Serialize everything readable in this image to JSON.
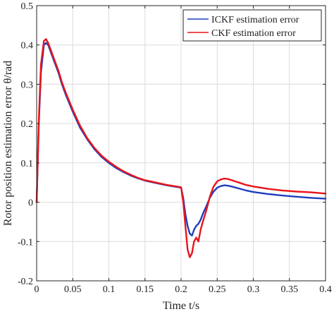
{
  "chart_data": {
    "type": "line",
    "title": "",
    "xlabel": "Time t/s",
    "ylabel": "Rotor position estimation error θ/rad",
    "xlim": [
      0,
      0.4
    ],
    "ylim": [
      -0.2,
      0.5
    ],
    "xticks": [
      0,
      0.05,
      0.1,
      0.15,
      0.2,
      0.25,
      0.3,
      0.35,
      0.4
    ],
    "xtick_labels": [
      "0",
      "0.05",
      "0.1",
      "0.15",
      "0.2",
      "0.25",
      "0.3",
      "0.35",
      "0.4"
    ],
    "yticks": [
      -0.2,
      -0.1,
      0,
      0.1,
      0.2,
      0.3,
      0.4,
      0.5
    ],
    "ytick_labels": [
      "-0.2",
      "-0.1",
      "0",
      "0.1",
      "0.2",
      "0.3",
      "0.4",
      "0.5"
    ],
    "grid": true,
    "legend_position": "top-right",
    "series": [
      {
        "name": "ICKF estimation error",
        "color": "#1f3fbf",
        "x": [
          0,
          0.003,
          0.006,
          0.01,
          0.013,
          0.016,
          0.02,
          0.025,
          0.03,
          0.035,
          0.04,
          0.05,
          0.06,
          0.07,
          0.08,
          0.09,
          0.1,
          0.11,
          0.12,
          0.13,
          0.14,
          0.15,
          0.16,
          0.17,
          0.18,
          0.19,
          0.2,
          0.203,
          0.206,
          0.209,
          0.212,
          0.215,
          0.218,
          0.221,
          0.224,
          0.227,
          0.23,
          0.235,
          0.24,
          0.245,
          0.25,
          0.255,
          0.26,
          0.265,
          0.27,
          0.28,
          0.29,
          0.3,
          0.32,
          0.34,
          0.36,
          0.38,
          0.4
        ],
        "y": [
          0,
          0.2,
          0.33,
          0.4,
          0.405,
          0.4,
          0.38,
          0.355,
          0.33,
          0.3,
          0.275,
          0.23,
          0.19,
          0.16,
          0.135,
          0.115,
          0.1,
          0.087,
          0.077,
          0.068,
          0.061,
          0.055,
          0.051,
          0.047,
          0.043,
          0.04,
          0.037,
          0.01,
          -0.03,
          -0.06,
          -0.08,
          -0.085,
          -0.07,
          -0.06,
          -0.055,
          -0.045,
          -0.03,
          -0.01,
          0.012,
          0.027,
          0.037,
          0.041,
          0.043,
          0.042,
          0.04,
          0.035,
          0.03,
          0.026,
          0.021,
          0.017,
          0.014,
          0.011,
          0.009
        ]
      },
      {
        "name": "CKF estimation error",
        "color": "#e8141c",
        "x": [
          0,
          0.003,
          0.006,
          0.01,
          0.013,
          0.016,
          0.02,
          0.025,
          0.03,
          0.035,
          0.04,
          0.05,
          0.06,
          0.07,
          0.08,
          0.09,
          0.1,
          0.11,
          0.12,
          0.13,
          0.14,
          0.15,
          0.16,
          0.17,
          0.18,
          0.19,
          0.2,
          0.203,
          0.206,
          0.209,
          0.212,
          0.215,
          0.218,
          0.221,
          0.224,
          0.227,
          0.23,
          0.235,
          0.24,
          0.245,
          0.25,
          0.255,
          0.26,
          0.265,
          0.27,
          0.28,
          0.29,
          0.3,
          0.32,
          0.34,
          0.36,
          0.38,
          0.4
        ],
        "y": [
          0,
          0.21,
          0.35,
          0.41,
          0.415,
          0.405,
          0.385,
          0.36,
          0.335,
          0.305,
          0.28,
          0.235,
          0.195,
          0.163,
          0.138,
          0.118,
          0.103,
          0.09,
          0.079,
          0.07,
          0.062,
          0.056,
          0.052,
          0.048,
          0.044,
          0.041,
          0.038,
          0.0,
          -0.06,
          -0.12,
          -0.14,
          -0.13,
          -0.1,
          -0.09,
          -0.1,
          -0.07,
          -0.05,
          -0.02,
          0.015,
          0.04,
          0.053,
          0.058,
          0.06,
          0.059,
          0.056,
          0.05,
          0.044,
          0.04,
          0.034,
          0.03,
          0.027,
          0.025,
          0.022
        ]
      }
    ]
  }
}
